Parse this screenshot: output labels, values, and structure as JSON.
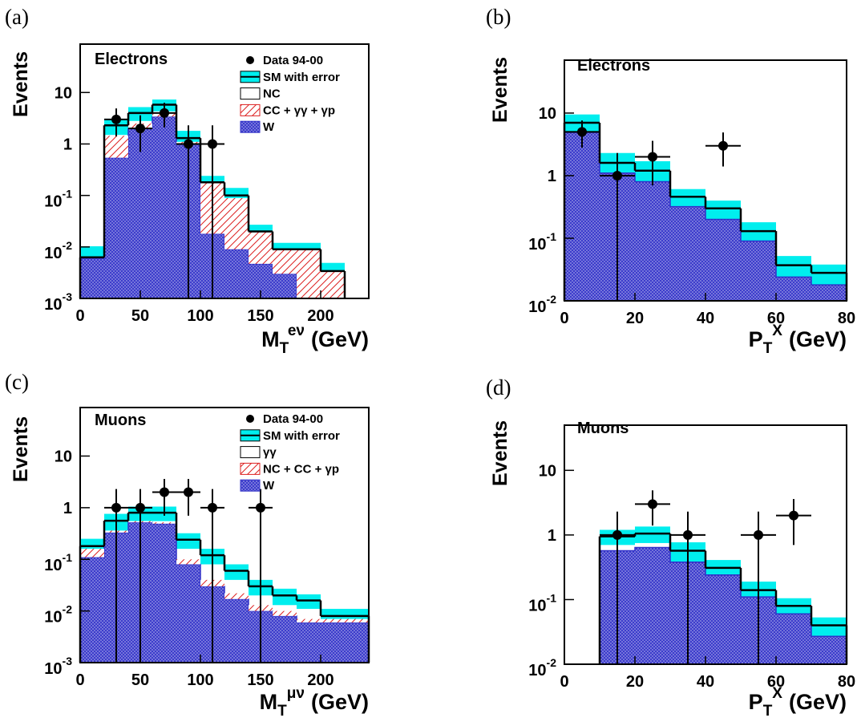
{
  "chart_data": [
    {
      "type": "histogram",
      "label": "(a)",
      "channel": "Electrons",
      "ylabel": "Events",
      "xlabel": {
        "text": "M",
        "sub": "T",
        "sup": "eν",
        "unit": "(GeV)"
      },
      "log_y": true,
      "xlim": [
        0,
        240
      ],
      "xticks": [
        0,
        50,
        100,
        150,
        200
      ],
      "ylim": [
        0.001,
        87
      ],
      "yticks": [
        {
          "value": 0.001,
          "label": "10^-3"
        },
        {
          "value": 0.01,
          "label": "10^-2"
        },
        {
          "value": 0.1,
          "label": "10^-1"
        },
        1,
        10
      ],
      "bins": [
        0,
        20,
        40,
        60,
        80,
        100,
        120,
        140,
        160,
        180,
        200,
        220
      ],
      "series": [
        {
          "name": "SM with error",
          "color": "#00eeee",
          "line_color": "#000000",
          "values": [
            0.0063,
            2.3,
            4,
            5.8,
            1.3,
            0.18,
            0.1,
            0.02,
            0.009,
            0.009,
            0.0034
          ],
          "errors": [
            0.004,
            0.8,
            1.2,
            1.5,
            0.5,
            0.06,
            0.04,
            0.007,
            0.003,
            0.003,
            0.0015
          ]
        },
        {
          "name": "NC",
          "color": "#ffffff"
        },
        {
          "name": "CC + γγ + γp",
          "color": "#dd2222",
          "hatch": "diagonal",
          "values": [
            0,
            0.9,
            0.5,
            0.5,
            0.1,
            0.16,
            0.08,
            0.015,
            0.006,
            0.008,
            0.0034
          ]
        },
        {
          "name": "W",
          "color": "#3030c8",
          "hatch": "cross",
          "values": [
            0.006,
            0.54,
            2,
            3.4,
            1.0,
            0.018,
            0.009,
            0.0047,
            0.003,
            0.001,
            null
          ]
        }
      ],
      "points": {
        "name": "Data 94-00",
        "color": "#000000",
        "x": [
          30,
          50,
          70,
          90,
          110
        ],
        "values": [
          3,
          2,
          4,
          1,
          1
        ],
        "xerr": [
          10,
          10,
          10,
          10,
          10
        ],
        "yerr_low": [
          1.6,
          1.3,
          1.9,
          1,
          1
        ],
        "yerr_high": [
          1.9,
          1.6,
          2.3,
          1.3,
          1.3
        ]
      }
    },
    {
      "type": "histogram",
      "label": "(b)",
      "channel": "Electrons",
      "ylabel": "Events",
      "xlabel": {
        "text": "P",
        "sub": "T",
        "sup": "X",
        "unit": "(GeV)"
      },
      "log_y": true,
      "xlim": [
        0,
        80
      ],
      "xticks": [
        0,
        20,
        40,
        60,
        80
      ],
      "ylim": [
        0.01,
        70
      ],
      "yticks": [
        {
          "value": 0.01,
          "label": "10^-2"
        },
        {
          "value": 0.1,
          "label": "10^-1"
        },
        1,
        10
      ],
      "bins": [
        0,
        10,
        20,
        30,
        40,
        50,
        60,
        70,
        80
      ],
      "series": [
        {
          "color": "#00eeee",
          "line_color": "#000000",
          "values": [
            7,
            1.6,
            1.2,
            0.46,
            0.3,
            0.13,
            0.037,
            0.028
          ],
          "errors": [
            2.5,
            0.7,
            0.5,
            0.15,
            0.1,
            0.05,
            0.015,
            0.01
          ]
        },
        {
          "color": "#3030c8",
          "hatch": "cross",
          "values": [
            4.9,
            1.1,
            0.8,
            0.32,
            0.2,
            0.09,
            0.024,
            0.018
          ]
        }
      ],
      "points": {
        "color": "#000000",
        "x": [
          5,
          15,
          25,
          45
        ],
        "values": [
          5,
          1,
          2,
          3
        ],
        "xerr": [
          5,
          5,
          5,
          5
        ],
        "yerr_low": [
          2.2,
          1,
          1.3,
          1.6
        ],
        "yerr_high": [
          2.6,
          1.3,
          1.6,
          1.9
        ]
      }
    },
    {
      "type": "histogram",
      "label": "(c)",
      "channel": "Muons",
      "ylabel": "Events",
      "xlabel": {
        "text": "M",
        "sub": "T",
        "sup": "μν",
        "unit": "(GeV)"
      },
      "log_y": true,
      "xlim": [
        0,
        240
      ],
      "xticks": [
        0,
        50,
        100,
        150,
        200
      ],
      "ylim": [
        0.001,
        87
      ],
      "yticks": [
        {
          "value": 0.001,
          "label": "10^-3"
        },
        {
          "value": 0.01,
          "label": "10^-2"
        },
        {
          "value": 0.1,
          "label": "10^-1"
        },
        1,
        10
      ],
      "bins": [
        0,
        20,
        40,
        60,
        80,
        100,
        120,
        140,
        160,
        180,
        200,
        220,
        240
      ],
      "series": [
        {
          "name": "SM with error",
          "color": "#00eeee",
          "line_color": "#000000",
          "values": [
            0.18,
            0.56,
            0.8,
            0.8,
            0.24,
            0.12,
            0.06,
            0.03,
            0.02,
            0.016,
            0.008,
            0.008
          ],
          "errors": [
            0.07,
            0.2,
            0.25,
            0.25,
            0.08,
            0.04,
            0.02,
            0.01,
            0.007,
            0.005,
            0.003,
            0.003
          ]
        },
        {
          "name": "γγ",
          "color": "#ffffff"
        },
        {
          "name": "NC + CC + γp",
          "color": "#dd2222",
          "hatch": "diagonal",
          "values": [
            0.05,
            0.03,
            0.03,
            0.03,
            0.02,
            0.01,
            0.005,
            0.003,
            0.002,
            0.001,
            0.001,
            0.001
          ]
        },
        {
          "name": "W",
          "color": "#3030c8",
          "hatch": "cross",
          "values": [
            0.11,
            0.33,
            0.52,
            0.49,
            0.08,
            0.03,
            0.017,
            0.01,
            0.008,
            0.006,
            0.006,
            0.006
          ]
        }
      ],
      "points": {
        "name": "Data 94-00",
        "color": "#000000",
        "x": [
          30,
          50,
          70,
          90,
          110,
          150
        ],
        "values": [
          1,
          1,
          2,
          2,
          1,
          1
        ],
        "xerr": [
          10,
          10,
          10,
          10,
          10,
          10
        ],
        "yerr_low": [
          1,
          1,
          1.3,
          1.3,
          1,
          1
        ],
        "yerr_high": [
          1.3,
          1.3,
          1.6,
          1.6,
          1.3,
          1.3
        ]
      }
    },
    {
      "type": "histogram",
      "label": "(d)",
      "channel": "Muons",
      "ylabel": "Events",
      "xlabel": {
        "text": "P",
        "sub": "T",
        "sup": "X",
        "unit": "(GeV)"
      },
      "log_y": true,
      "xlim": [
        0,
        80
      ],
      "xticks": [
        0,
        20,
        40,
        60,
        80
      ],
      "ylim": [
        0.01,
        50
      ],
      "yticks": [
        {
          "value": 0.01,
          "label": "10^-2"
        },
        {
          "value": 0.1,
          "label": "10^-1"
        },
        1,
        10
      ],
      "bins": [
        10,
        20,
        30,
        40,
        50,
        60,
        70,
        80
      ],
      "series": [
        {
          "color": "#00eeee",
          "line_color": "#000000",
          "values": [
            0.95,
            1.05,
            0.57,
            0.31,
            0.14,
            0.08,
            0.04
          ],
          "errors": [
            0.25,
            0.3,
            0.2,
            0.1,
            0.05,
            0.025,
            0.013
          ]
        },
        {
          "color": "#3030c8",
          "hatch": "cross",
          "values": [
            0.57,
            0.64,
            0.38,
            0.24,
            0.11,
            0.06,
            0.027
          ]
        }
      ],
      "points": {
        "color": "#000000",
        "x": [
          15,
          25,
          35,
          55,
          65
        ],
        "values": [
          1,
          3,
          1,
          1,
          2
        ],
        "xerr": [
          5,
          5,
          5,
          5,
          5
        ],
        "yerr_low": [
          1,
          1.6,
          1,
          1,
          1.3
        ],
        "yerr_high": [
          1.3,
          1.9,
          1.3,
          1.3,
          1.6
        ]
      }
    }
  ]
}
